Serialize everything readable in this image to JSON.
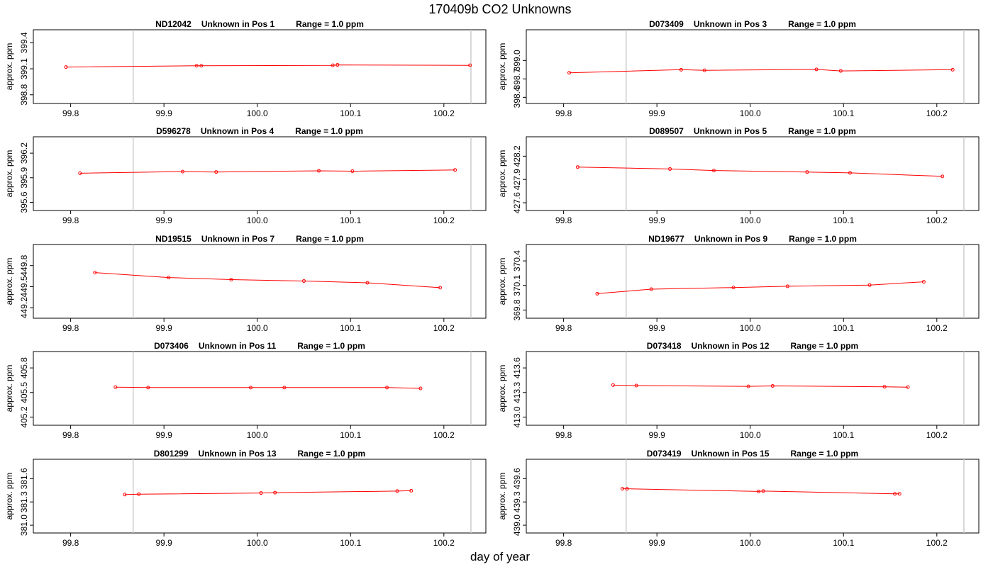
{
  "title": "170409b  CO2 Unknowns",
  "x_axis_label": "day of year",
  "colors": {
    "series": "#ff0000",
    "vline": "#cccccc",
    "axis": "#000000"
  },
  "chart_data": [
    {
      "type": "line",
      "title_id": "ND12042",
      "title_pos": "Unknown in Pos 1",
      "title_range": "Range = 1.0 ppm",
      "ylabel": "approx. ppm",
      "xlim": [
        99.76,
        100.245
      ],
      "xticks": [
        "99.8",
        "99.9",
        "100.0",
        "100.1",
        "100.2"
      ],
      "ylim": [
        398.7,
        399.55
      ],
      "yticks": [
        "398.8",
        "399.1",
        "399.4"
      ],
      "vlines": [
        99.867,
        100.229
      ],
      "x": [
        99.795,
        99.935,
        99.94,
        100.081,
        100.086,
        100.228
      ],
      "y": [
        399.12,
        399.135,
        399.135,
        399.14,
        399.145,
        399.14
      ]
    },
    {
      "type": "line",
      "title_id": "D073409",
      "title_pos": "Unknown in Pos 3",
      "title_range": "Range = 1.0 ppm",
      "ylabel": "approx. ppm",
      "xlim": [
        99.76,
        100.245
      ],
      "xticks": [
        "99.8",
        "99.9",
        "100.0",
        "100.1",
        "100.2"
      ],
      "ylim": [
        398.3,
        399.5
      ],
      "yticks": [
        "398.4",
        "398.7",
        "399.0"
      ],
      "vlines": [
        99.867,
        100.229
      ],
      "x": [
        99.806,
        99.926,
        99.951,
        100.071,
        100.097,
        100.217
      ],
      "y": [
        398.8,
        398.85,
        398.84,
        398.855,
        398.83,
        398.85
      ]
    },
    {
      "type": "line",
      "title_id": "D596278",
      "title_pos": "Unknown in Pos 4",
      "title_range": "Range = 1.0 ppm",
      "ylabel": "approx. ppm",
      "xlim": [
        99.76,
        100.245
      ],
      "xticks": [
        "99.8",
        "99.9",
        "100.0",
        "100.1",
        "100.2"
      ],
      "ylim": [
        395.5,
        396.4
      ],
      "yticks": [
        "395.6",
        "395.9",
        "396.2"
      ],
      "vlines": [
        99.867,
        100.229
      ],
      "x": [
        99.81,
        99.92,
        99.956,
        100.066,
        100.102,
        100.212
      ],
      "y": [
        395.955,
        395.975,
        395.97,
        395.985,
        395.98,
        395.995
      ]
    },
    {
      "type": "line",
      "title_id": "D089507",
      "title_pos": "Unknown in Pos 5",
      "title_range": "Range = 1.0 ppm",
      "ylabel": "approx. ppm",
      "xlim": [
        99.76,
        100.245
      ],
      "xticks": [
        "99.8",
        "99.9",
        "100.0",
        "100.1",
        "100.2"
      ],
      "ylim": [
        427.5,
        428.45
      ],
      "yticks": [
        "427.6",
        "427.9",
        "428.2"
      ],
      "vlines": [
        99.867,
        100.229
      ],
      "x": [
        99.815,
        99.914,
        99.961,
        100.061,
        100.107,
        100.206
      ],
      "y": [
        428.06,
        428.035,
        428.015,
        427.995,
        427.985,
        427.94
      ]
    },
    {
      "type": "line",
      "title_id": "ND19515",
      "title_pos": "Unknown in Pos 7",
      "title_range": "Range = 1.0 ppm",
      "ylabel": "approx. ppm",
      "xlim": [
        99.76,
        100.245
      ],
      "xticks": [
        "99.8",
        "99.9",
        "100.0",
        "100.1",
        "100.2"
      ],
      "ylim": [
        449.05,
        450.1
      ],
      "yticks": [
        "449.2",
        "449.5",
        "449.8"
      ],
      "vlines": [
        99.867,
        100.229
      ],
      "x": [
        99.826,
        99.905,
        99.972,
        100.05,
        100.118,
        100.196
      ],
      "y": [
        449.7,
        449.63,
        449.6,
        449.58,
        449.555,
        449.485
      ]
    },
    {
      "type": "line",
      "title_id": "ND19677",
      "title_pos": "Unknown in Pos 9",
      "title_range": "Range = 1.0 ppm",
      "ylabel": "approx. ppm",
      "xlim": [
        99.76,
        100.245
      ],
      "xticks": [
        "99.8",
        "99.9",
        "100.0",
        "100.1",
        "100.2"
      ],
      "ylim": [
        369.7,
        370.6
      ],
      "yticks": [
        "369.8",
        "370.1",
        "370.4"
      ],
      "vlines": [
        99.867,
        100.229
      ],
      "x": [
        99.836,
        99.894,
        99.982,
        100.04,
        100.128,
        100.186
      ],
      "y": [
        370.0,
        370.055,
        370.075,
        370.09,
        370.105,
        370.145
      ]
    },
    {
      "type": "line",
      "title_id": "D073406",
      "title_pos": "Unknown in Pos 11",
      "title_range": "Range = 1.0 ppm",
      "ylabel": "approx. ppm",
      "xlim": [
        99.76,
        100.245
      ],
      "xticks": [
        "99.8",
        "99.9",
        "100.0",
        "100.1",
        "100.2"
      ],
      "ylim": [
        405.1,
        406.0
      ],
      "yticks": [
        "405.2",
        "405.5",
        "405.8"
      ],
      "vlines": [
        99.867,
        100.229
      ],
      "x": [
        99.848,
        99.883,
        99.993,
        100.029,
        100.139,
        100.175
      ],
      "y": [
        405.565,
        405.56,
        405.56,
        405.56,
        405.56,
        405.55
      ]
    },
    {
      "type": "line",
      "title_id": "D073418",
      "title_pos": "Unknown in Pos 12",
      "title_range": "Range = 1.0 ppm",
      "ylabel": "approx. ppm",
      "xlim": [
        99.76,
        100.245
      ],
      "xticks": [
        "99.8",
        "99.9",
        "100.0",
        "100.1",
        "100.2"
      ],
      "ylim": [
        412.9,
        413.8
      ],
      "yticks": [
        "413.0",
        "413.3",
        "413.6"
      ],
      "vlines": [
        99.867,
        100.229
      ],
      "x": [
        99.853,
        99.878,
        99.998,
        100.024,
        100.144,
        100.169
      ],
      "y": [
        413.39,
        413.385,
        413.375,
        413.38,
        413.37,
        413.365
      ]
    },
    {
      "type": "line",
      "title_id": "D801299",
      "title_pos": "Unknown in Pos 13",
      "title_range": "Range = 1.0 ppm",
      "ylabel": "approx. ppm",
      "xlim": [
        99.76,
        100.245
      ],
      "xticks": [
        "99.8",
        "99.9",
        "100.0",
        "100.1",
        "100.2"
      ],
      "ylim": [
        380.9,
        381.85
      ],
      "yticks": [
        "381.0",
        "381.3",
        "381.6"
      ],
      "vlines": [
        99.867,
        100.229
      ],
      "x": [
        99.858,
        99.873,
        100.004,
        100.019,
        100.15,
        100.165
      ],
      "y": [
        381.395,
        381.4,
        381.415,
        381.42,
        381.44,
        381.445
      ]
    },
    {
      "type": "line",
      "title_id": "D073419",
      "title_pos": "Unknown in Pos 15",
      "title_range": "Range = 1.0 ppm",
      "ylabel": "approx. ppm",
      "xlim": [
        99.76,
        100.245
      ],
      "xticks": [
        "99.8",
        "99.9",
        "100.0",
        "100.1",
        "100.2"
      ],
      "ylim": [
        438.9,
        439.85
      ],
      "yticks": [
        "439.0",
        "439.3",
        "439.6"
      ],
      "vlines": [
        99.867,
        100.229
      ],
      "x": [
        99.863,
        99.868,
        100.009,
        100.014,
        100.155,
        100.16
      ],
      "y": [
        439.47,
        439.47,
        439.435,
        439.44,
        439.405,
        439.405
      ]
    }
  ]
}
